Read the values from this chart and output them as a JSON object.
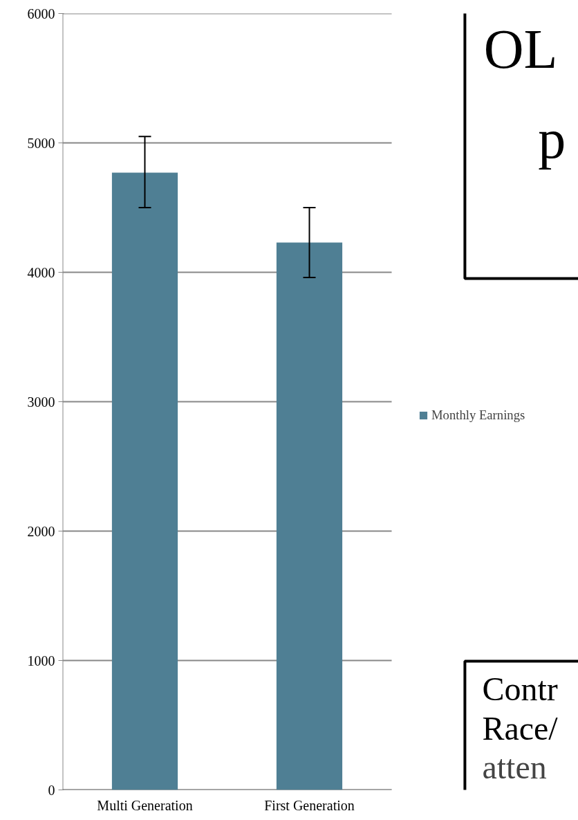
{
  "chart_data": {
    "type": "bar",
    "categories": [
      "Multi Generation",
      "First Generation"
    ],
    "series": [
      {
        "name": "Monthly Earnings",
        "color": "#4f7f94",
        "values": [
          4770,
          4230
        ],
        "errors": [
          [
            4500,
            5050
          ],
          [
            3960,
            4500
          ]
        ]
      }
    ],
    "ylim": [
      0,
      6000
    ],
    "yticks": [
      0,
      1000,
      2000,
      3000,
      4000,
      5000,
      6000
    ],
    "grid": "y",
    "legend": "right",
    "annotations": [
      "OL",
      "p",
      "Contr",
      "Race/",
      "atten"
    ]
  }
}
